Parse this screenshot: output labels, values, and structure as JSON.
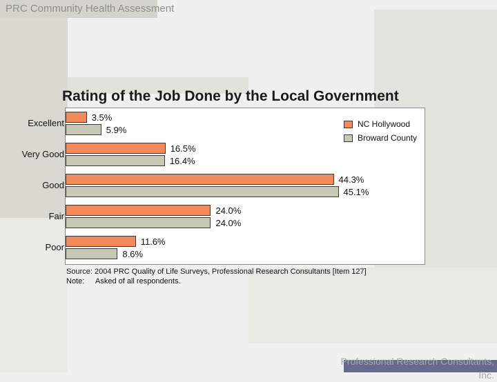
{
  "header": {
    "title": "PRC Community Health Assessment"
  },
  "chart_data": {
    "type": "bar",
    "orientation": "horizontal",
    "title": "Rating of the Job Done by the Local Government",
    "categories": [
      "Excellent",
      "Very Good",
      "Good",
      "Fair",
      "Poor"
    ],
    "series": [
      {
        "name": "NC Hollywood",
        "values": [
          3.5,
          16.5,
          44.3,
          24.0,
          11.6
        ],
        "labels": [
          "3.5%",
          "16.5%",
          "44.3%",
          "24.0%",
          "11.6%"
        ],
        "color": "#f48a5a"
      },
      {
        "name": "Broward County",
        "values": [
          5.9,
          16.4,
          45.1,
          24.0,
          8.6
        ],
        "labels": [
          "5.9%",
          "16.4%",
          "45.1%",
          "24.0%",
          "8.6%"
        ],
        "color": "#c8c9b4"
      }
    ],
    "xlim": [
      0,
      50
    ],
    "legend": "top-right",
    "grid": false
  },
  "footnotes": {
    "source": "Source: 2004 PRC Quality of Life Surveys, Professional Research Consultants [Item 127]",
    "note_label": "Note:",
    "note_text": "Asked of all respondents."
  },
  "footer": {
    "text": "Professional Research Consultants, Inc."
  },
  "colors": {
    "accent_footer": "#666a8c",
    "background": "#f0f0ee"
  }
}
